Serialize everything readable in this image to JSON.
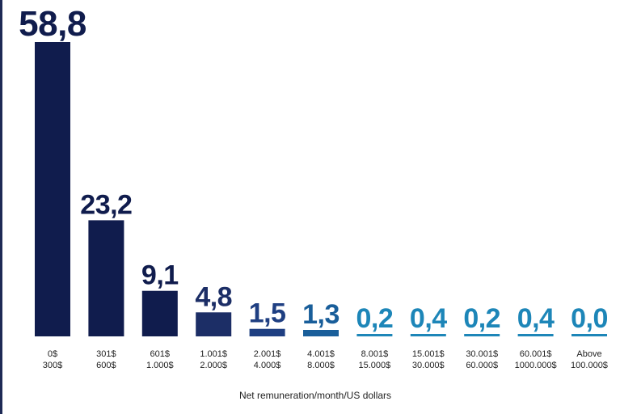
{
  "chart_data": {
    "type": "bar",
    "xlabel": "Net remuneration/month/US dollars",
    "categories": [
      [
        "0$",
        "300$"
      ],
      [
        "301$",
        "600$"
      ],
      [
        "601$",
        "1.000$"
      ],
      [
        "1.001$",
        "2.000$"
      ],
      [
        "2.001$",
        "4.000$"
      ],
      [
        "4.001$",
        "8.000$"
      ],
      [
        "8.001$",
        "15.000$"
      ],
      [
        "15.001$",
        "30.000$"
      ],
      [
        "30.001$",
        "60.000$"
      ],
      [
        "60.001$",
        "1000.000$"
      ],
      [
        "Above",
        "100.000$"
      ]
    ],
    "values": [
      58.8,
      23.2,
      9.1,
      4.8,
      1.5,
      1.3,
      0.2,
      0.4,
      0.2,
      0.4,
      0.0
    ],
    "data_labels": [
      "58,8",
      "23,2",
      "9,1",
      "4,8",
      "1,5",
      "1,3",
      "0,2",
      "0,4",
      "0,2",
      "0,4",
      "0,0"
    ],
    "bar_colors": [
      "#101c4d",
      "#101c4d",
      "#101c4d",
      "#1c2e66",
      "#1f3f82",
      "#195e9a",
      "#1d86b8",
      "#1d86b8",
      "#1d86b8",
      "#1d86b8",
      "#1d86b8"
    ],
    "label_colors": [
      "#101c4d",
      "#101c4d",
      "#101c4d",
      "#1c2e66",
      "#1f3f82",
      "#195e9a",
      "#1d86b8",
      "#1d86b8",
      "#1d86b8",
      "#1d86b8",
      "#1d86b8"
    ],
    "ylim": [
      0,
      58.8
    ],
    "grid": false,
    "legend": "none"
  }
}
